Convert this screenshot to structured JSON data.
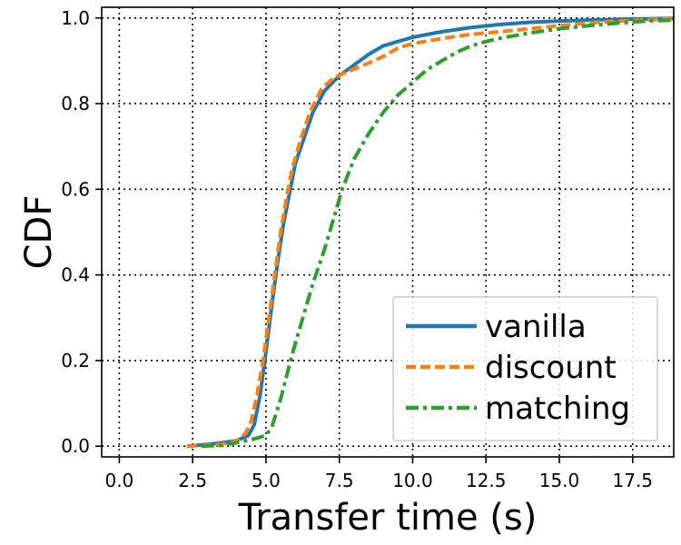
{
  "chart_data": {
    "type": "line",
    "title": "",
    "xlabel": "Transfer time (s)",
    "ylabel": "CDF",
    "xlim": [
      -0.6,
      18.9
    ],
    "ylim": [
      -0.025,
      1.025
    ],
    "xticks": [
      0.0,
      2.5,
      5.0,
      7.5,
      10.0,
      12.5,
      15.0,
      17.5
    ],
    "xtick_labels": [
      "0.0",
      "2.5",
      "5.0",
      "7.5",
      "10.0",
      "12.5",
      "15.0",
      "17.5"
    ],
    "yticks": [
      0.0,
      0.2,
      0.4,
      0.6,
      0.8,
      1.0
    ],
    "ytick_labels": [
      "0.0",
      "0.2",
      "0.4",
      "0.6",
      "0.8",
      "1.0"
    ],
    "grid": true,
    "legend_position": "bottom-right",
    "series": [
      {
        "name": "vanilla",
        "color": "#1f77b4",
        "style": "solid",
        "points": [
          [
            2.3,
            0.0
          ],
          [
            3.0,
            0.004
          ],
          [
            3.5,
            0.008
          ],
          [
            4.0,
            0.013
          ],
          [
            4.4,
            0.025
          ],
          [
            4.6,
            0.05
          ],
          [
            4.8,
            0.12
          ],
          [
            5.0,
            0.22
          ],
          [
            5.2,
            0.33
          ],
          [
            5.4,
            0.43
          ],
          [
            5.6,
            0.52
          ],
          [
            5.8,
            0.59
          ],
          [
            6.0,
            0.66
          ],
          [
            6.3,
            0.72
          ],
          [
            6.6,
            0.78
          ],
          [
            7.0,
            0.83
          ],
          [
            7.5,
            0.865
          ],
          [
            8.0,
            0.89
          ],
          [
            8.5,
            0.915
          ],
          [
            9.0,
            0.935
          ],
          [
            9.5,
            0.945
          ],
          [
            10.0,
            0.955
          ],
          [
            11.0,
            0.968
          ],
          [
            12.0,
            0.978
          ],
          [
            13.0,
            0.985
          ],
          [
            14.0,
            0.99
          ],
          [
            15.0,
            0.993
          ],
          [
            16.0,
            0.995
          ],
          [
            17.0,
            0.997
          ],
          [
            18.0,
            0.998
          ],
          [
            18.9,
            0.999
          ]
        ]
      },
      {
        "name": "discount",
        "color": "#ff7f0e",
        "style": "dashed",
        "points": [
          [
            2.3,
            0.0
          ],
          [
            3.0,
            0.002
          ],
          [
            3.5,
            0.005
          ],
          [
            4.0,
            0.012
          ],
          [
            4.3,
            0.03
          ],
          [
            4.5,
            0.06
          ],
          [
            4.7,
            0.12
          ],
          [
            4.9,
            0.2
          ],
          [
            5.1,
            0.3
          ],
          [
            5.3,
            0.4
          ],
          [
            5.5,
            0.5
          ],
          [
            5.7,
            0.58
          ],
          [
            5.9,
            0.65
          ],
          [
            6.2,
            0.72
          ],
          [
            6.5,
            0.78
          ],
          [
            6.9,
            0.835
          ],
          [
            7.3,
            0.86
          ],
          [
            7.8,
            0.875
          ],
          [
            8.5,
            0.895
          ],
          [
            9.0,
            0.91
          ],
          [
            9.5,
            0.93
          ],
          [
            10.0,
            0.94
          ],
          [
            11.0,
            0.952
          ],
          [
            12.0,
            0.962
          ],
          [
            13.0,
            0.968
          ],
          [
            14.0,
            0.975
          ],
          [
            15.0,
            0.982
          ],
          [
            16.0,
            0.988
          ],
          [
            17.0,
            0.993
          ],
          [
            18.0,
            0.996
          ],
          [
            18.9,
            0.998
          ]
        ]
      },
      {
        "name": "matching",
        "color": "#2ca02c",
        "style": "dashdot",
        "points": [
          [
            2.8,
            0.0
          ],
          [
            3.5,
            0.002
          ],
          [
            4.0,
            0.008
          ],
          [
            4.5,
            0.015
          ],
          [
            5.0,
            0.025
          ],
          [
            5.2,
            0.045
          ],
          [
            5.5,
            0.11
          ],
          [
            5.8,
            0.19
          ],
          [
            6.0,
            0.24
          ],
          [
            6.3,
            0.31
          ],
          [
            6.6,
            0.38
          ],
          [
            7.0,
            0.46
          ],
          [
            7.3,
            0.53
          ],
          [
            7.6,
            0.6
          ],
          [
            8.0,
            0.67
          ],
          [
            8.5,
            0.73
          ],
          [
            9.0,
            0.78
          ],
          [
            9.5,
            0.82
          ],
          [
            10.0,
            0.85
          ],
          [
            10.5,
            0.88
          ],
          [
            11.0,
            0.9
          ],
          [
            11.5,
            0.92
          ],
          [
            12.0,
            0.935
          ],
          [
            12.5,
            0.945
          ],
          [
            13.0,
            0.953
          ],
          [
            14.0,
            0.965
          ],
          [
            15.0,
            0.975
          ],
          [
            16.0,
            0.982
          ],
          [
            17.0,
            0.988
          ],
          [
            18.0,
            0.993
          ],
          [
            18.9,
            0.995
          ]
        ]
      }
    ]
  }
}
